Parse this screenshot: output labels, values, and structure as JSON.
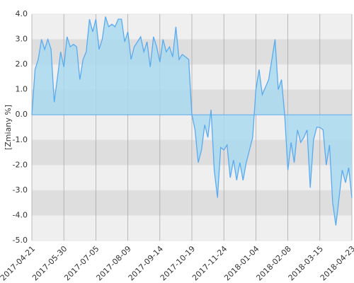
{
  "chart_data": {
    "type": "area",
    "y_label": "[Zmiany %]",
    "categories": [
      "2017-04-21",
      null,
      null,
      null,
      null,
      null,
      null,
      null,
      null,
      null,
      "2017-05-30",
      null,
      null,
      null,
      null,
      null,
      null,
      null,
      null,
      null,
      "2017-07-05",
      null,
      null,
      null,
      null,
      null,
      null,
      null,
      null,
      null,
      "2017-08-09",
      null,
      null,
      null,
      null,
      null,
      null,
      null,
      null,
      null,
      "2017-09-14",
      null,
      null,
      null,
      null,
      null,
      null,
      null,
      null,
      null,
      "2017-10-19",
      null,
      null,
      null,
      null,
      null,
      null,
      null,
      null,
      null,
      "2017-11-24",
      null,
      null,
      null,
      null,
      null,
      null,
      null,
      null,
      null,
      "2018-01-04",
      null,
      null,
      null,
      null,
      null,
      null,
      null,
      null,
      null,
      "2018-02-08",
      null,
      null,
      null,
      null,
      null,
      null,
      null,
      null,
      null,
      "2018-03-15",
      null,
      null,
      null,
      null,
      null,
      null,
      null,
      null,
      null,
      "2018-04-23"
    ],
    "values": [
      0,
      1.8,
      2.2,
      3.0,
      2.6,
      3.0,
      2.6,
      0.5,
      1.5,
      2.5,
      1.9,
      3.1,
      2.7,
      2.8,
      2.7,
      1.4,
      2.2,
      2.5,
      3.8,
      3.3,
      3.8,
      2.6,
      3.0,
      3.9,
      3.5,
      3.6,
      3.5,
      3.8,
      3.8,
      2.9,
      3.3,
      2.2,
      2.7,
      2.9,
      3.1,
      2.5,
      2.9,
      1.9,
      3.1,
      2.7,
      2.1,
      3.0,
      2.5,
      2.7,
      2.3,
      3.5,
      2.2,
      2.4,
      2.3,
      2.2,
      0.0,
      -0.6,
      -1.9,
      -1.4,
      -0.4,
      -0.9,
      0.2,
      -2.2,
      -3.3,
      -1.3,
      -1.4,
      -1.2,
      -2.5,
      -1.8,
      -2.6,
      -1.9,
      -2.6,
      -1.9,
      -1.4,
      -0.9,
      1.0,
      1.8,
      0.8,
      1.1,
      1.4,
      2.2,
      3.0,
      1.0,
      1.4,
      0.0,
      -2.2,
      -1.1,
      -1.9,
      -0.6,
      -1.1,
      -0.9,
      -0.6,
      -2.9,
      -1.0,
      -0.5,
      -0.5,
      -0.6,
      -2.0,
      -1.2,
      -3.5,
      -4.4,
      -3.3,
      -2.2,
      -2.7,
      -2.1,
      -3.3
    ],
    "color": "#5aaaf0",
    "fill": "#a9d9ee",
    "ylim": [
      -5,
      4
    ],
    "yticks": [
      {
        "value": 4,
        "label": "4.0"
      },
      {
        "value": 3,
        "label": "3.0"
      },
      {
        "value": 2,
        "label": "2.0"
      },
      {
        "value": 1,
        "label": "1.0"
      },
      {
        "value": 0,
        "label": "0.0"
      },
      {
        "value": -1,
        "label": "-1.0"
      },
      {
        "value": -2,
        "label": "-2.0"
      },
      {
        "value": -3,
        "label": "-3.0"
      },
      {
        "value": -4,
        "label": "-4.0"
      },
      {
        "value": -5,
        "label": "-5.0"
      }
    ],
    "grid": true
  }
}
